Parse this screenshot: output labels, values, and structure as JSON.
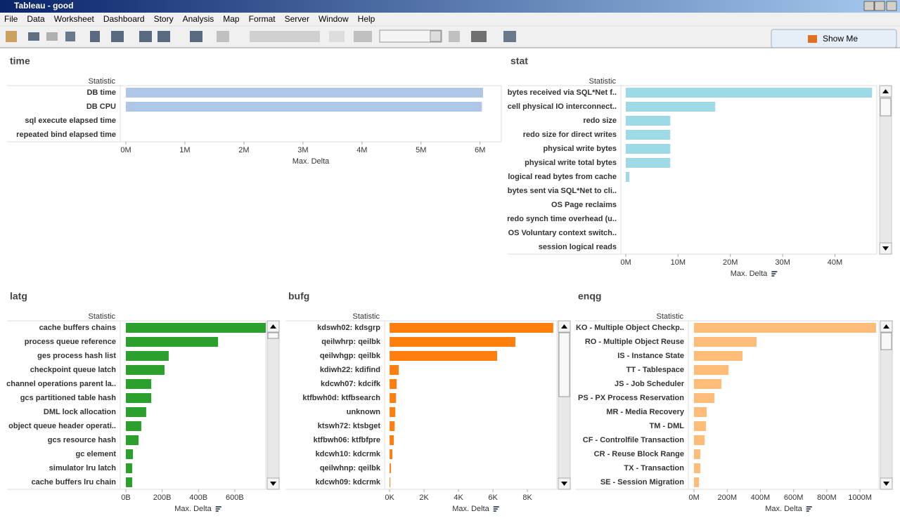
{
  "window": {
    "title": "Tableau - good",
    "menu": [
      "File",
      "Data",
      "Worksheet",
      "Dashboard",
      "Story",
      "Analysis",
      "Map",
      "Format",
      "Server",
      "Window",
      "Help"
    ],
    "show_me": "Show Me"
  },
  "chart_data": [
    {
      "type": "bar",
      "title": "time",
      "category_label": "Statistic",
      "x_label": "Max. Delta",
      "color": "#aec7e8",
      "categories": [
        "DB time",
        "DB CPU",
        "sql execute elapsed time",
        "repeated bind elapsed time"
      ],
      "values": [
        6050000,
        6030000,
        0,
        0
      ],
      "xlim": [
        -95000,
        6360000
      ],
      "xticks": [
        {
          "value": 0,
          "label": "0M"
        },
        {
          "value": 1000000,
          "label": "1M"
        },
        {
          "value": 2000000,
          "label": "2M"
        },
        {
          "value": 3000000,
          "label": "3M"
        },
        {
          "value": 4000000,
          "label": "4M"
        },
        {
          "value": 5000000,
          "label": "5M"
        },
        {
          "value": 6000000,
          "label": "6M"
        }
      ]
    },
    {
      "type": "bar",
      "title": "stat",
      "category_label": "Statistic",
      "x_label": "Max. Delta",
      "color": "#9edae5",
      "categories": [
        "bytes received via SQL*Net f..",
        "cell physical IO interconnect..",
        "redo size",
        "redo size for direct writes",
        "physical write bytes",
        "physical write total bytes",
        "logical read bytes from cache",
        "bytes sent via SQL*Net to cli..",
        "OS Page reclaims",
        "redo synch time overhead (u..",
        "OS Voluntary context switch..",
        "session logical reads"
      ],
      "values": [
        47100000,
        17100000,
        8500000,
        8500000,
        8500000,
        8500000,
        700000,
        0,
        0,
        0,
        0,
        0
      ],
      "xlim": [
        -940000,
        48000000
      ],
      "xticks": [
        {
          "value": 0,
          "label": "0M"
        },
        {
          "value": 10000000,
          "label": "10M"
        },
        {
          "value": 20000000,
          "label": "20M"
        },
        {
          "value": 30000000,
          "label": "30M"
        },
        {
          "value": 40000000,
          "label": "40M"
        }
      ]
    },
    {
      "type": "bar",
      "title": "latg",
      "category_label": "Statistic",
      "x_label": "Max. Delta",
      "color": "#2ca02c",
      "categories": [
        "cache buffers chains",
        "process queue reference",
        "ges process hash list",
        "checkpoint queue latch",
        "channel operations parent la..",
        "gcs partitioned table hash",
        "DML lock allocation",
        "object queue header operati..",
        "gcs resource hash",
        "gc element",
        "simulator lru latch",
        "cache buffers lru chain"
      ],
      "values": [
        771,
        508,
        236,
        213,
        140,
        140,
        112,
        85,
        70,
        39,
        35,
        35
      ],
      "xlim": [
        -31,
        771
      ],
      "xticks": [
        {
          "value": 0,
          "label": "0B"
        },
        {
          "value": 200,
          "label": "200B"
        },
        {
          "value": 400,
          "label": "400B"
        },
        {
          "value": 600,
          "label": "600B"
        }
      ]
    },
    {
      "type": "bar",
      "title": "bufg",
      "category_label": "Statistic",
      "x_label": "Max. Delta",
      "color": "#ff7f0e",
      "categories": [
        "kdswh02: kdsgrp",
        "qeilwhrp: qeilbk",
        "qeilwhgp: qeilbk",
        "kdiwh22: kdifind",
        "kdcwh07: kdcifk",
        "ktfbwh0d: ktfbsearch",
        "unknown",
        "ktswh72: ktsbget",
        "ktfbwh06: ktfbfpre",
        "kdcwh10: kdcrmk",
        "qeilwhnp: qeilbk",
        "kdcwh09: kdcrmk"
      ],
      "values": [
        9500,
        7300,
        6240,
        530,
        410,
        370,
        330,
        290,
        245,
        160,
        80,
        40
      ],
      "xlim": [
        -290,
        9710
      ],
      "xticks": [
        {
          "value": 0,
          "label": "0K"
        },
        {
          "value": 2000,
          "label": "2K"
        },
        {
          "value": 4000,
          "label": "4K"
        },
        {
          "value": 6000,
          "label": "6K"
        },
        {
          "value": 8000,
          "label": "8K"
        }
      ]
    },
    {
      "type": "bar",
      "title": "enqg",
      "category_label": "Statistic",
      "x_label": "Max. Delta",
      "color": "#ffbb78",
      "categories": [
        "KO - Multiple Object Checkp..",
        "RO - Multiple Object Reuse",
        "IS - Instance State",
        "TT - Tablespace",
        "JS - Job Scheduler",
        "PS - PX Process Reservation",
        "MR - Media Recovery",
        "TM - DML",
        "CF - Controlfile Transaction",
        "CR - Reuse Block Range",
        "TX - Transaction",
        "SE - Session Migration"
      ],
      "values": [
        1097000000,
        377000000,
        292000000,
        208000000,
        165000000,
        123000000,
        76000000,
        72000000,
        64000000,
        38000000,
        38000000,
        30000000
      ],
      "xlim": [
        -34000000,
        1114000000
      ],
      "xticks": [
        {
          "value": 0,
          "label": "0M"
        },
        {
          "value": 200000000,
          "label": "200M"
        },
        {
          "value": 400000000,
          "label": "400M"
        },
        {
          "value": 600000000,
          "label": "600M"
        },
        {
          "value": 800000000,
          "label": "800M"
        },
        {
          "value": 1000000000,
          "label": "1000M"
        }
      ]
    }
  ]
}
